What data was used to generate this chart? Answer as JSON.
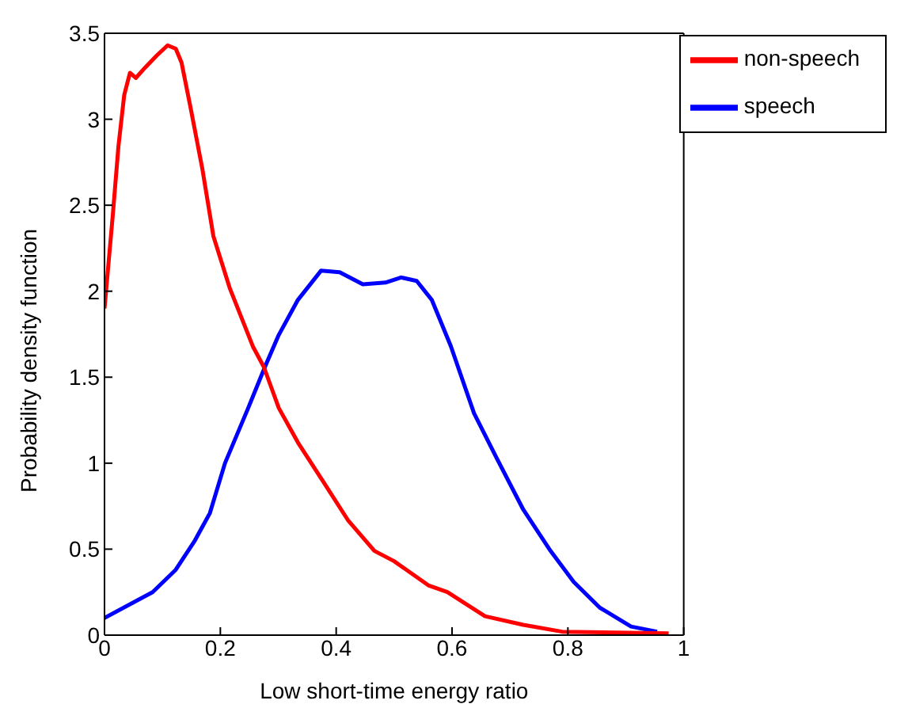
{
  "chart_data": {
    "type": "line",
    "xlabel": "Low short-time energy ratio",
    "ylabel": "Probability density function",
    "xlim": [
      0,
      1
    ],
    "xticks": [
      0,
      0.2,
      0.4,
      0.6,
      0.8,
      1
    ],
    "ylim": [
      0,
      3.5
    ],
    "yticks": [
      0,
      0.5,
      1,
      1.5,
      2,
      2.5,
      3,
      3.5
    ],
    "grid": false,
    "legend": "top right",
    "marker": "none",
    "line_style": "solid",
    "series": [
      {
        "name": "speech",
        "color": "#0000ff",
        "x": [
          0,
          0.083,
          0.123,
          0.156,
          0.182,
          0.208,
          0.248,
          0.277,
          0.3,
          0.334,
          0.374,
          0.406,
          0.446,
          0.485,
          0.512,
          0.539,
          0.565,
          0.598,
          0.638,
          0.677,
          0.723,
          0.77,
          0.81,
          0.855,
          0.909,
          0.954
        ],
        "values": [
          0.1,
          0.25,
          0.38,
          0.55,
          0.71,
          1.0,
          1.32,
          1.56,
          1.74,
          1.95,
          2.12,
          2.11,
          2.04,
          2.05,
          2.08,
          2.06,
          1.95,
          1.68,
          1.29,
          1.03,
          0.73,
          0.49,
          0.31,
          0.16,
          0.05,
          0.02
        ]
      },
      {
        "name": "non-speech",
        "color": "#ff0000",
        "x": [
          0,
          0.014,
          0.024,
          0.034,
          0.044,
          0.054,
          0.07,
          0.09,
          0.109,
          0.123,
          0.133,
          0.149,
          0.169,
          0.188,
          0.216,
          0.256,
          0.275,
          0.301,
          0.334,
          0.38,
          0.42,
          0.466,
          0.5,
          0.559,
          0.592,
          0.657,
          0.723,
          0.79,
          0.974
        ],
        "values": [
          1.9,
          2.43,
          2.84,
          3.14,
          3.27,
          3.24,
          3.3,
          3.37,
          3.43,
          3.41,
          3.33,
          3.06,
          2.71,
          2.32,
          2.02,
          1.68,
          1.56,
          1.32,
          1.12,
          0.88,
          0.67,
          0.49,
          0.43,
          0.29,
          0.25,
          0.11,
          0.06,
          0.02,
          0.01
        ]
      }
    ]
  }
}
